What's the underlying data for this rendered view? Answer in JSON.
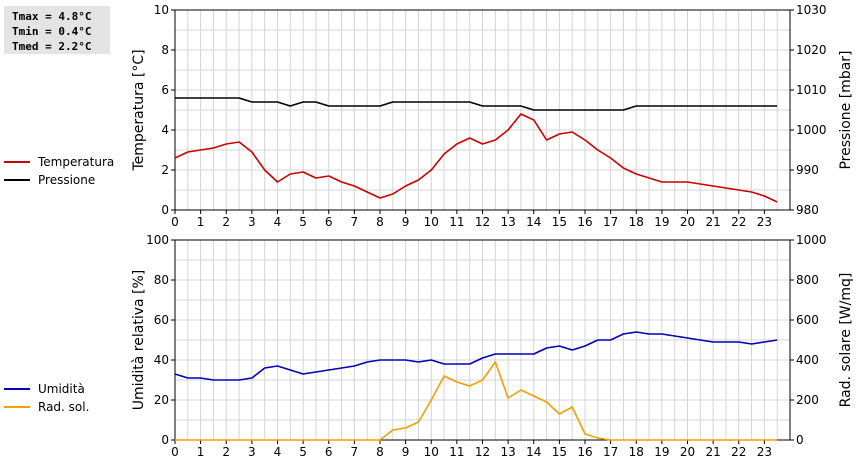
{
  "stats": {
    "tmax": "Tmax =  4.8°C",
    "tmin": "Tmin =  0.4°C",
    "tmed": "Tmed =  2.2°C"
  },
  "legend": {
    "top": [
      {
        "label": "Temperatura",
        "color": "#cc0000"
      },
      {
        "label": "Pressione",
        "color": "#000000"
      }
    ],
    "bottom": [
      {
        "label": "Umidità",
        "color": "#0000bb"
      },
      {
        "label": "Rad. sol.",
        "color": "#f0a000"
      }
    ]
  },
  "chart_data": [
    {
      "type": "line",
      "ylabel": "Temperatura [°C]",
      "y2label": "Pressione [mbar]",
      "ylim": [
        0,
        10
      ],
      "y2lim": [
        980,
        1030
      ],
      "yticks": [
        "0",
        "2",
        "4",
        "6",
        "8",
        "10"
      ],
      "y2ticks": [
        "980",
        "990",
        "1000",
        "1010",
        "1020",
        "1030"
      ],
      "xticks": [
        "0",
        "1",
        "2",
        "3",
        "4",
        "5",
        "6",
        "7",
        "8",
        "9",
        "10",
        "11",
        "12",
        "13",
        "14",
        "15",
        "16",
        "17",
        "18",
        "19",
        "20",
        "21",
        "22",
        "23"
      ],
      "xlim": [
        0,
        24
      ],
      "grid": true,
      "series": [
        {
          "name": "Temperatura",
          "color": "#cc0000",
          "axis": "left",
          "x": [
            0,
            0.5,
            1,
            1.5,
            2,
            2.5,
            3,
            3.5,
            4,
            4.5,
            5,
            5.5,
            6,
            6.5,
            7,
            7.5,
            8,
            8.5,
            9,
            9.5,
            10,
            10.5,
            11,
            11.5,
            12,
            12.5,
            13,
            13.5,
            14,
            14.5,
            15,
            15.5,
            16,
            16.5,
            17,
            17.5,
            18,
            18.5,
            19,
            19.5,
            20,
            20.5,
            21,
            21.5,
            22,
            22.5,
            23,
            23.5
          ],
          "y": [
            2.6,
            2.9,
            3.0,
            3.1,
            3.3,
            3.4,
            2.9,
            2.0,
            1.4,
            1.8,
            1.9,
            1.6,
            1.7,
            1.4,
            1.2,
            0.9,
            0.6,
            0.8,
            1.2,
            1.5,
            2.0,
            2.8,
            3.3,
            3.6,
            3.3,
            3.5,
            4.0,
            4.8,
            4.5,
            3.5,
            3.8,
            3.9,
            3.5,
            3.0,
            2.6,
            2.1,
            1.8,
            1.6,
            1.4,
            1.4,
            1.4,
            1.3,
            1.2,
            1.1,
            1.0,
            0.9,
            0.7,
            0.4
          ]
        },
        {
          "name": "Pressione",
          "color": "#000000",
          "axis": "right",
          "x": [
            0,
            0.5,
            1,
            1.5,
            2,
            2.5,
            3,
            3.5,
            4,
            4.5,
            5,
            5.5,
            6,
            6.5,
            7,
            7.5,
            8,
            8.5,
            9,
            9.5,
            10,
            10.5,
            11,
            11.5,
            12,
            12.5,
            13,
            13.5,
            14,
            14.5,
            15,
            15.5,
            16,
            16.5,
            17,
            17.5,
            18,
            18.5,
            19,
            19.5,
            20,
            20.5,
            21,
            21.5,
            22,
            22.5,
            23,
            23.5
          ],
          "y": [
            1008,
            1008,
            1008,
            1008,
            1008,
            1008,
            1007,
            1007,
            1007,
            1006,
            1007,
            1007,
            1006,
            1006,
            1006,
            1006,
            1006,
            1007,
            1007,
            1007,
            1007,
            1007,
            1007,
            1007,
            1006,
            1006,
            1006,
            1006,
            1005,
            1005,
            1005,
            1005,
            1005,
            1005,
            1005,
            1005,
            1006,
            1006,
            1006,
            1006,
            1006,
            1006,
            1006,
            1006,
            1006,
            1006,
            1006,
            1006
          ]
        }
      ]
    },
    {
      "type": "line",
      "ylabel": "Umidità relativa [%]",
      "y2label": "Rad. solare [W/mq]",
      "ylim": [
        0,
        100
      ],
      "y2lim": [
        0,
        1000
      ],
      "yticks": [
        "0",
        "20",
        "40",
        "60",
        "80",
        "100"
      ],
      "y2ticks": [
        "0",
        "200",
        "400",
        "600",
        "800",
        "1000"
      ],
      "xticks": [
        "0",
        "1",
        "2",
        "3",
        "4",
        "5",
        "6",
        "7",
        "8",
        "9",
        "10",
        "11",
        "12",
        "13",
        "14",
        "15",
        "16",
        "17",
        "18",
        "19",
        "20",
        "21",
        "22",
        "23"
      ],
      "xlim": [
        0,
        24
      ],
      "grid": true,
      "series": [
        {
          "name": "Umidità",
          "color": "#0000bb",
          "axis": "left",
          "x": [
            0,
            0.5,
            1,
            1.5,
            2,
            2.5,
            3,
            3.5,
            4,
            4.5,
            5,
            5.5,
            6,
            6.5,
            7,
            7.5,
            8,
            8.5,
            9,
            9.5,
            10,
            10.5,
            11,
            11.5,
            12,
            12.5,
            13,
            13.5,
            14,
            14.5,
            15,
            15.5,
            16,
            16.5,
            17,
            17.5,
            18,
            18.5,
            19,
            19.5,
            20,
            20.5,
            21,
            21.5,
            22,
            22.5,
            23,
            23.5
          ],
          "y": [
            33,
            31,
            31,
            30,
            30,
            30,
            31,
            36,
            37,
            35,
            33,
            34,
            35,
            36,
            37,
            39,
            40,
            40,
            40,
            39,
            40,
            38,
            38,
            38,
            41,
            43,
            43,
            43,
            43,
            46,
            47,
            45,
            47,
            50,
            50,
            53,
            54,
            53,
            53,
            52,
            51,
            50,
            49,
            49,
            49,
            48,
            49,
            50
          ]
        },
        {
          "name": "Rad. sol.",
          "color": "#f0a000",
          "axis": "right",
          "x": [
            0,
            0.5,
            1,
            1.5,
            2,
            2.5,
            3,
            3.5,
            4,
            4.5,
            5,
            5.5,
            6,
            6.5,
            7,
            7.5,
            8,
            8.5,
            9,
            9.5,
            10,
            10.5,
            11,
            11.5,
            12,
            12.5,
            13,
            13.5,
            14,
            14.5,
            15,
            15.5,
            16,
            16.5,
            17,
            17.5,
            18,
            18.5,
            19,
            19.5,
            20,
            20.5,
            21,
            21.5,
            22,
            22.5,
            23,
            23.5
          ],
          "y": [
            0,
            0,
            0,
            0,
            0,
            0,
            0,
            0,
            0,
            0,
            0,
            0,
            0,
            0,
            0,
            0,
            0,
            50,
            60,
            90,
            200,
            320,
            290,
            270,
            300,
            390,
            210,
            250,
            220,
            190,
            130,
            165,
            30,
            10,
            0,
            0,
            0,
            0,
            0,
            0,
            0,
            0,
            0,
            0,
            0,
            0,
            0,
            0
          ]
        }
      ]
    }
  ]
}
